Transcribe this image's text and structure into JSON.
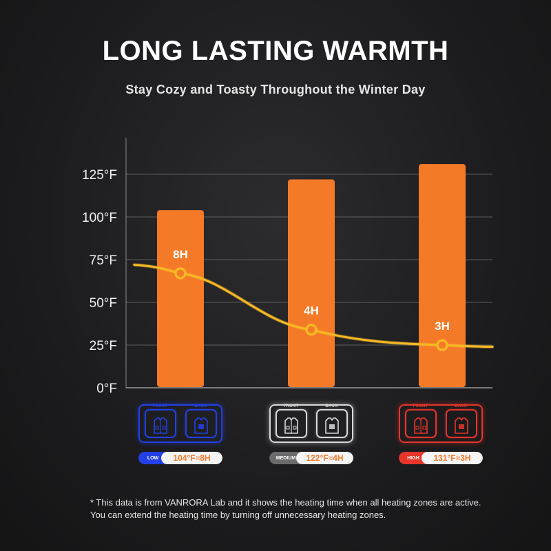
{
  "header": {
    "title": "LONG LASTING WARMTH",
    "subtitle": "Stay Cozy and Toasty Throughout the Winter Day"
  },
  "chart_data": {
    "type": "bar",
    "categories": [
      "LOW",
      "MEDIUM",
      "HIGH"
    ],
    "values": [
      104,
      122,
      131
    ],
    "yunit": "°F",
    "ylim": [
      0,
      140
    ],
    "yticks": [
      0,
      25,
      50,
      75,
      100,
      125
    ],
    "ytick_labels": [
      "0°F",
      "25°F",
      "50°F",
      "75°F",
      "100°F",
      "125°F"
    ],
    "grid": true,
    "bar_color": "#f47a28",
    "overlay_line": {
      "color": "#f7b924",
      "points": [
        {
          "label": "8H",
          "hours": 8,
          "y": 67
        },
        {
          "label": "4H",
          "hours": 4,
          "y": 34
        },
        {
          "label": "3H",
          "hours": 3,
          "y": 25
        }
      ]
    }
  },
  "modes": [
    {
      "level": "LOW",
      "value": "104°F≈8H",
      "color": "#2340e8",
      "front": "FRONT",
      "back": "BACK"
    },
    {
      "level": "MEDIUM",
      "value": "122°F≈4H",
      "color": "#d9d9d9",
      "level_bg": "#6b6b6b",
      "front": "FRONT",
      "back": "BACK"
    },
    {
      "level": "HIGH",
      "value": "131°F≈3H",
      "color": "#e8352a",
      "front": "FRONT",
      "back": "BACK"
    }
  ],
  "footnote": {
    "line1": "* This data is from VANRORA Lab and it shows the heating time when all heating zones are active.",
    "line2": "You can extend the heating time by turning off unnecessary heating zones."
  }
}
